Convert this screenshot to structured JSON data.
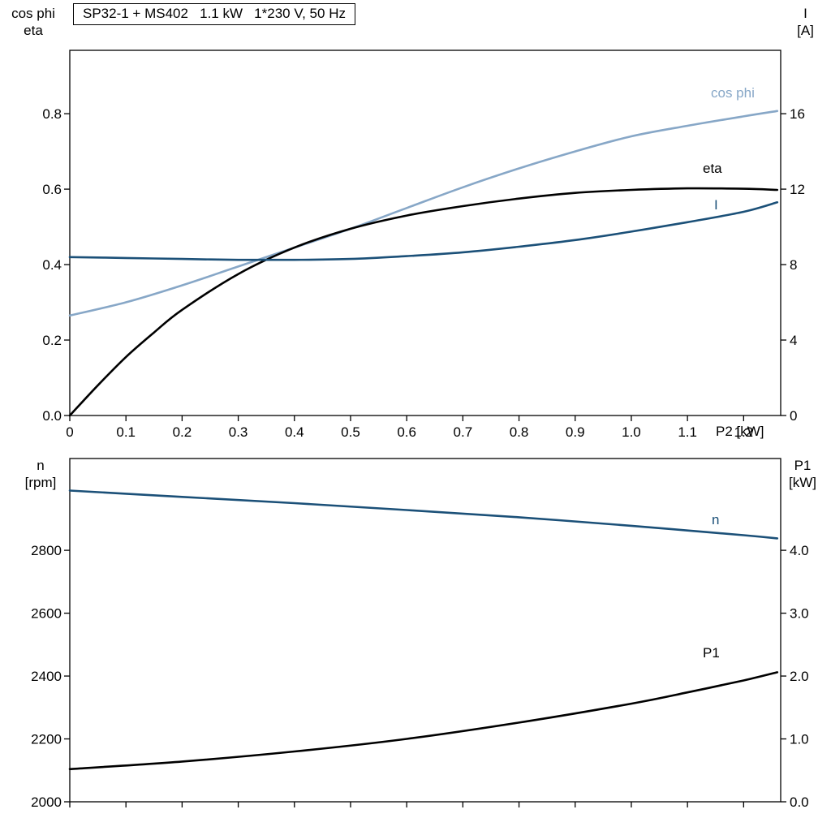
{
  "page": {
    "background": "#ffffff"
  },
  "colors": {
    "light_blue": "#87a7c7",
    "dark_blue": "#1b5078",
    "black": "#000000",
    "frame": "#000000"
  },
  "chart_data": [
    {
      "type": "line",
      "title": "SP32-1 + MS402   1.1 kW   1*230 V, 50 Hz",
      "x_axis": {
        "label": "P2 [kW]",
        "range": [
          0,
          1.266
        ],
        "ticks": [
          0,
          0.1,
          0.2,
          0.3,
          0.4,
          0.5,
          0.6,
          0.7,
          0.8,
          0.9,
          1.0,
          1.1,
          1.2
        ],
        "tick_labels": [
          "0",
          "0.1",
          "0.2",
          "0.3",
          "0.4",
          "0.5",
          "0.6",
          "0.7",
          "0.8",
          "0.9",
          "1.0",
          "1.1",
          "1.2"
        ]
      },
      "left_axis": {
        "label_lines": [
          "cos phi",
          "eta"
        ],
        "range": [
          0,
          0.968
        ],
        "ticks": [
          0,
          0.2,
          0.4,
          0.6,
          0.8
        ],
        "tick_labels": [
          "0.0",
          "0.2",
          "0.4",
          "0.6",
          "0.8"
        ]
      },
      "right_axis": {
        "label_lines": [
          "I",
          "[A]"
        ],
        "range": [
          0,
          19.36
        ],
        "ticks": [
          0,
          4,
          8,
          12,
          16
        ],
        "tick_labels": [
          "0",
          "4",
          "8",
          "12",
          "16"
        ]
      },
      "grid": false,
      "series": [
        {
          "name": "cos phi",
          "axis": "left",
          "color": "#87a7c7",
          "x": [
            0,
            0.1,
            0.2,
            0.3,
            0.4,
            0.5,
            0.6,
            0.7,
            0.8,
            0.9,
            1.0,
            1.1,
            1.2,
            1.26
          ],
          "y": [
            0.265,
            0.3,
            0.345,
            0.395,
            0.445,
            0.495,
            0.55,
            0.605,
            0.655,
            0.7,
            0.74,
            0.768,
            0.793,
            0.807
          ]
        },
        {
          "name": "eta",
          "axis": "left",
          "color": "#000000",
          "x": [
            0,
            0.05,
            0.1,
            0.15,
            0.2,
            0.3,
            0.4,
            0.5,
            0.6,
            0.7,
            0.8,
            0.9,
            1.0,
            1.1,
            1.2,
            1.26
          ],
          "y": [
            0,
            0.08,
            0.155,
            0.22,
            0.28,
            0.375,
            0.445,
            0.495,
            0.53,
            0.555,
            0.575,
            0.59,
            0.598,
            0.602,
            0.601,
            0.598
          ]
        },
        {
          "name": "I",
          "axis": "right",
          "color": "#1b5078",
          "x": [
            0,
            0.1,
            0.2,
            0.3,
            0.4,
            0.5,
            0.6,
            0.7,
            0.8,
            0.9,
            1.0,
            1.1,
            1.2,
            1.26
          ],
          "y": [
            8.4,
            8.35,
            8.3,
            8.25,
            8.25,
            8.3,
            8.45,
            8.65,
            8.95,
            9.3,
            9.75,
            10.25,
            10.8,
            11.3
          ]
        }
      ]
    },
    {
      "type": "line",
      "title": "",
      "x_axis": {
        "label": "",
        "range": [
          0,
          1.266
        ],
        "ticks": [
          0,
          0.1,
          0.2,
          0.3,
          0.4,
          0.5,
          0.6,
          0.7,
          0.8,
          0.9,
          1.0,
          1.1,
          1.2
        ],
        "tick_labels": []
      },
      "left_axis": {
        "label_lines": [
          "n",
          "[rpm]"
        ],
        "range": [
          2000,
          3092
        ],
        "ticks": [
          2000,
          2200,
          2400,
          2600,
          2800
        ],
        "tick_labels": [
          "2000",
          "2200",
          "2400",
          "2600",
          "2800"
        ]
      },
      "right_axis": {
        "label_lines": [
          "P1",
          "[kW]"
        ],
        "range": [
          0,
          5.46
        ],
        "ticks": [
          0,
          1,
          2,
          3,
          4
        ],
        "tick_labels": [
          "0.0",
          "1.0",
          "2.0",
          "3.0",
          "4.0"
        ]
      },
      "grid": false,
      "series": [
        {
          "name": "n",
          "axis": "left",
          "color": "#1b5078",
          "x": [
            0,
            0.2,
            0.4,
            0.6,
            0.8,
            1.0,
            1.1,
            1.2,
            1.26
          ],
          "y": [
            2990,
            2970,
            2950,
            2928,
            2905,
            2878,
            2863,
            2848,
            2838
          ]
        },
        {
          "name": "P1",
          "axis": "right",
          "color": "#000000",
          "x": [
            0,
            0.2,
            0.4,
            0.6,
            0.8,
            1.0,
            1.1,
            1.2,
            1.26
          ],
          "y": [
            0.52,
            0.64,
            0.8,
            1.0,
            1.26,
            1.56,
            1.74,
            1.93,
            2.06
          ]
        }
      ]
    }
  ]
}
